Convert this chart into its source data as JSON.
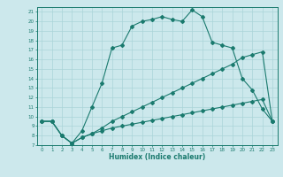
{
  "xlabel": "Humidex (Indice chaleur)",
  "bg_color": "#cce8ec",
  "line_color": "#1a7a6e",
  "grid_color": "#aad4d8",
  "xlim": [
    -0.5,
    23.5
  ],
  "ylim": [
    7,
    21.5
  ],
  "xticks": [
    0,
    1,
    2,
    3,
    4,
    5,
    6,
    7,
    8,
    9,
    10,
    11,
    12,
    13,
    14,
    15,
    16,
    17,
    18,
    19,
    20,
    21,
    22,
    23
  ],
  "yticks": [
    7,
    8,
    9,
    10,
    11,
    12,
    13,
    14,
    15,
    16,
    17,
    18,
    19,
    20,
    21
  ],
  "line1_x": [
    0,
    1,
    2,
    3,
    4,
    5,
    6,
    7,
    8,
    9,
    10,
    11,
    12,
    13,
    14,
    15,
    16,
    17,
    18,
    19,
    20,
    21,
    22,
    23
  ],
  "line1_y": [
    9.5,
    9.5,
    8.0,
    7.2,
    7.8,
    8.2,
    8.5,
    8.8,
    9.0,
    9.2,
    9.4,
    9.6,
    9.8,
    10.0,
    10.2,
    10.4,
    10.6,
    10.8,
    11.0,
    11.2,
    11.4,
    11.6,
    11.8,
    9.5
  ],
  "line2_x": [
    0,
    1,
    2,
    3,
    4,
    5,
    6,
    7,
    8,
    9,
    10,
    11,
    12,
    13,
    14,
    15,
    16,
    17,
    18,
    19,
    20,
    21,
    22,
    23
  ],
  "line2_y": [
    9.5,
    9.5,
    8.0,
    7.2,
    7.8,
    8.2,
    8.8,
    9.5,
    10.0,
    10.5,
    11.0,
    11.5,
    12.0,
    12.5,
    13.0,
    13.5,
    14.0,
    14.5,
    15.0,
    15.5,
    16.2,
    16.5,
    16.8,
    9.5
  ],
  "line3_x": [
    0,
    1,
    2,
    3,
    4,
    5,
    6,
    7,
    8,
    9,
    10,
    11,
    12,
    13,
    14,
    15,
    16,
    17,
    18,
    19,
    20,
    21,
    22,
    23
  ],
  "line3_y": [
    9.5,
    9.5,
    8.0,
    7.2,
    8.5,
    11.0,
    13.5,
    17.2,
    17.5,
    19.5,
    20.0,
    20.2,
    20.5,
    20.2,
    20.0,
    21.2,
    20.5,
    17.8,
    17.5,
    17.2,
    14.0,
    12.8,
    10.8,
    9.5
  ]
}
